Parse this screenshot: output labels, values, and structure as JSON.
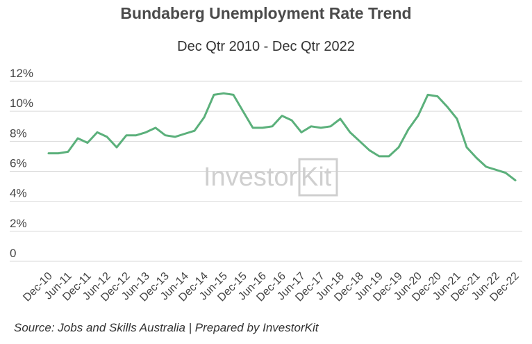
{
  "title": "Bundaberg Unemployment Rate Trend",
  "subtitle": "Dec Qtr 2010 - Dec Qtr 2022",
  "source": "Source: Jobs and Skills Australia | Prepared by InvestorKit",
  "watermark": {
    "text_left": "Investor",
    "text_right": "Kit"
  },
  "colors": {
    "line": "#5bb07b",
    "grid": "#d9d9d9",
    "watermark": "#cfcfcf"
  },
  "chart_data": {
    "type": "line",
    "title": "Bundaberg Unemployment Rate Trend",
    "subtitle": "Dec Qtr 2010 - Dec Qtr 2022",
    "ylim": [
      0,
      12
    ],
    "yticks": [
      0,
      2,
      4,
      6,
      8,
      10,
      12
    ],
    "ytick_labels": [
      "0",
      "2%",
      "4%",
      "6%",
      "8%",
      "10%",
      "12%"
    ],
    "xtick_labels": [
      "Dec-10",
      "Jun-11",
      "Dec-11",
      "Jun-12",
      "Dec-12",
      "Jun-13",
      "Dec-13",
      "Jun-14",
      "Dec-14",
      "Jun-15",
      "Dec-15",
      "Jun-16",
      "Dec-16",
      "Jun-17",
      "Dec-17",
      "Jun-18",
      "Dec-18",
      "Jun-19",
      "Dec-19",
      "Jun-20",
      "Dec-20",
      "Jun-21",
      "Dec-21",
      "Jun-22",
      "Dec-22"
    ],
    "grid": true,
    "legend": "none",
    "series": [
      {
        "values": [
          7.2,
          7.2,
          7.3,
          8.2,
          7.9,
          8.6,
          8.3,
          7.6,
          8.4,
          8.4,
          8.6,
          8.9,
          8.4,
          8.3,
          8.5,
          8.7,
          9.6,
          11.1,
          11.2,
          11.1,
          10.0,
          8.9,
          8.9,
          9.0,
          9.7,
          9.4,
          8.6,
          9.0,
          8.9,
          9.0,
          9.5,
          8.6,
          8.0,
          7.4,
          7.0,
          7.0,
          7.6,
          8.8,
          9.7,
          11.1,
          11.0,
          10.3,
          9.5,
          7.6,
          6.9,
          6.3,
          6.1,
          5.9,
          5.4
        ]
      }
    ]
  }
}
